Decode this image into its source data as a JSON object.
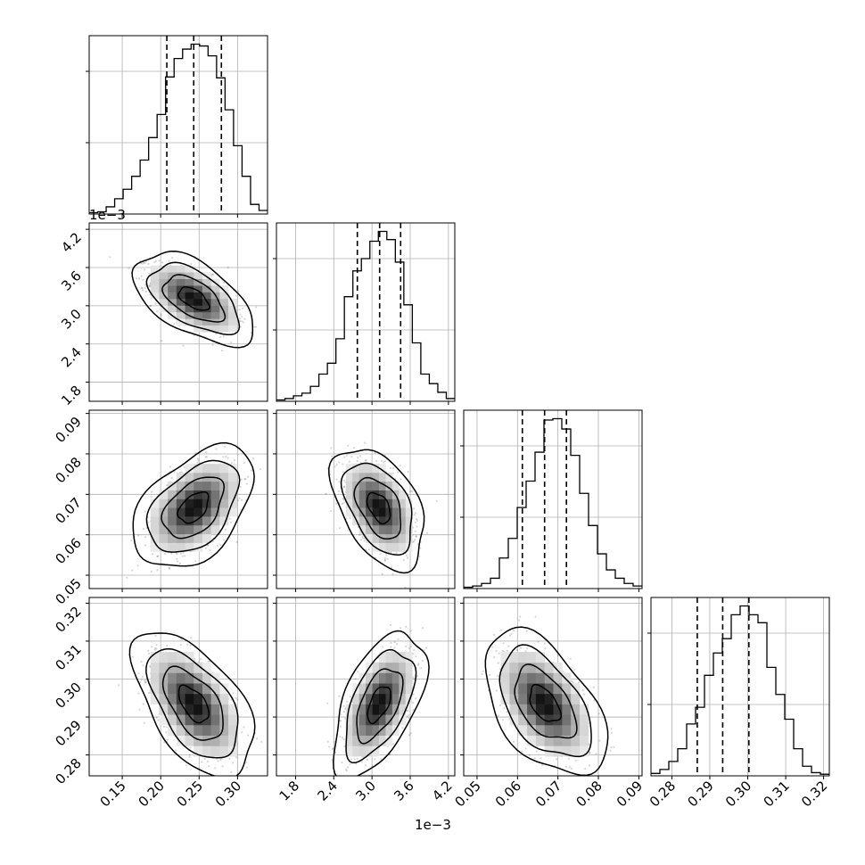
{
  "chart_data": {
    "type": "corner",
    "parameters": [
      {
        "ticks": [
          0.15,
          0.2,
          0.25,
          0.3
        ],
        "tick_labels": [
          "0.15",
          "0.20",
          "0.25",
          "0.30"
        ],
        "range": [
          0.107,
          0.339
        ],
        "offset_label": "",
        "quantiles": [
          0.208,
          0.243,
          0.279
        ],
        "hist_values": [
          0.6,
          1.0,
          3.2,
          6.8,
          11,
          16.8,
          24,
          34,
          44.3,
          61,
          69.2,
          73.4,
          75.6,
          74.8,
          70.4,
          60.6,
          46.4,
          30.4,
          16.8,
          4.3,
          1.6
        ]
      },
      {
        "ticks": [
          1.8,
          2.4,
          3.0,
          3.6,
          4.2
        ],
        "tick_labels": [
          "1.8",
          "2.4",
          "3.0",
          "3.6",
          "4.2"
        ],
        "range": [
          1.5,
          4.3
        ],
        "offset_label": "1e−3",
        "quantiles": [
          2.77,
          3.12,
          3.45
        ],
        "hist_values": [
          0.5,
          1.0,
          2.0,
          3.0,
          5.5,
          10,
          14,
          23,
          38.5,
          48,
          52.5,
          58.9,
          62.5,
          59.5,
          51.2,
          35.5,
          21.5,
          10,
          6.5,
          3.3,
          1.0
        ]
      },
      {
        "ticks": [
          0.05,
          0.06,
          0.07,
          0.08,
          0.09
        ],
        "tick_labels": [
          "0.05",
          "0.06",
          "0.07",
          "0.08",
          "0.09"
        ],
        "range": [
          0.0467,
          0.0908
        ],
        "offset_label": "",
        "quantiles": [
          0.0612,
          0.0667,
          0.0721
        ],
        "hist_values": [
          0.4,
          0.8,
          1.6,
          3.2,
          9.5,
          15.6,
          25.2,
          33.4,
          42.4,
          52.4,
          52.8,
          49.6,
          41.4,
          29.6,
          19.6,
          10.8,
          5.8,
          3.2,
          1.6,
          0.8
        ]
      },
      {
        "ticks": [
          0.28,
          0.29,
          0.3,
          0.31,
          0.32
        ],
        "tick_labels": [
          "0.28",
          "0.29",
          "0.30",
          "0.31",
          "0.32"
        ],
        "range": [
          0.2745,
          0.3215
        ],
        "offset_label": "",
        "quantiles": [
          0.2867,
          0.2934,
          0.3003
        ],
        "hist_values": [
          0.3,
          0.8,
          1.8,
          3.4,
          6.5,
          8.6,
          12.6,
          15.4,
          17.2,
          20.2,
          21.3,
          20.2,
          19.2,
          13.6,
          10.2,
          7.1,
          3.4,
          1.2,
          0.4,
          0.2
        ]
      }
    ],
    "joint_2d": [
      {
        "x": 0,
        "y": 1,
        "mean": [
          0.243,
          3.11
        ],
        "sd": [
          0.027,
          0.25
        ],
        "corr": -0.55
      },
      {
        "x": 0,
        "y": 2,
        "mean": [
          0.243,
          0.0667
        ],
        "sd": [
          0.027,
          0.0052
        ],
        "corr": 0.45
      },
      {
        "x": 1,
        "y": 2,
        "mean": [
          3.11,
          0.0667
        ],
        "sd": [
          0.25,
          0.0052
        ],
        "corr": -0.45
      },
      {
        "x": 0,
        "y": 3,
        "mean": [
          0.243,
          0.2934
        ],
        "sd": [
          0.027,
          0.0066
        ],
        "corr": -0.55
      },
      {
        "x": 1,
        "y": 3,
        "mean": [
          3.11,
          0.2934
        ],
        "sd": [
          0.25,
          0.0066
        ],
        "corr": 0.55
      },
      {
        "x": 2,
        "y": 3,
        "mean": [
          0.0667,
          0.2934
        ],
        "sd": [
          0.0052,
          0.0066
        ],
        "corr": -0.5
      }
    ],
    "contour_levels_sigma": [
      0.5,
      1.0,
      1.5,
      2.0
    ],
    "grid": true,
    "colors": {
      "line": "#000000",
      "grid": "#b0b0b0",
      "points": "#000000",
      "density_max": "#000000"
    }
  }
}
